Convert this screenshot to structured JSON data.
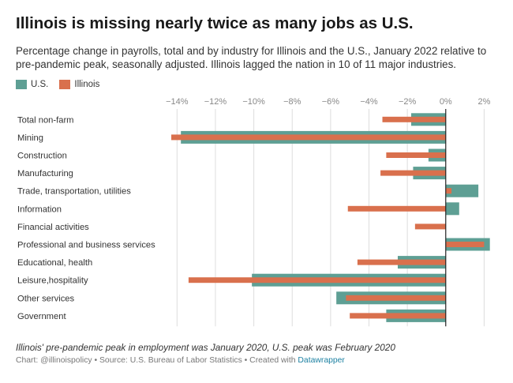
{
  "title": "Illinois is missing nearly twice as many jobs as U.S.",
  "subtitle": "Percentage change in payrolls, total and by industry for Illinois and the U.S., January 2022 relative to pre-pandemic peak, seasonally adjusted. Illinois lagged the nation in 10 of 11 major industries.",
  "legend": [
    {
      "name": "U.S.",
      "color": "#5e9f94"
    },
    {
      "name": "Illinois",
      "color": "#d9704d"
    }
  ],
  "note": "Illinois' pre-pandemic peak in employment was January 2020, U.S. peak was February 2020",
  "source": {
    "text": "Chart: @illinoispolicy • Source: U.S. Bureau of Labor Statistics • Created with ",
    "tool": "Datawrapper"
  },
  "colors": {
    "us": "#5e9f94",
    "illinois": "#d9704d",
    "zero_line": "#222222",
    "gridline": "#dddddd",
    "tick_label": "#888888"
  },
  "chart_data": {
    "type": "bar",
    "orientation": "horizontal",
    "categories": [
      "Total non-farm",
      "Mining",
      "Construction",
      "Manufacturing",
      "Trade, transportation, utilities",
      "Information",
      "Financial activities",
      "Professional and business services",
      "Educational, health",
      "Leisure,hospitality",
      "Other services",
      "Government"
    ],
    "series": [
      {
        "name": "U.S.",
        "values": [
          -1.8,
          -13.8,
          -0.9,
          -1.7,
          1.7,
          0.7,
          0.0,
          2.3,
          -2.5,
          -10.1,
          -5.7,
          -3.1
        ]
      },
      {
        "name": "Illinois",
        "values": [
          -3.3,
          -14.3,
          -3.1,
          -3.4,
          0.3,
          -5.1,
          -1.6,
          2.0,
          -4.6,
          -13.4,
          -5.2,
          -5.0
        ]
      }
    ],
    "xlim": [
      -15,
      2.6
    ],
    "ticks": [
      -14,
      -12,
      -10,
      -8,
      -6,
      -4,
      -2,
      0,
      2
    ],
    "tick_labels": [
      "−14%",
      "−12%",
      "−10%",
      "−8%",
      "−6%",
      "−4%",
      "−2%",
      "0%",
      "2%"
    ],
    "grid": true,
    "legend_position": "top-left"
  }
}
